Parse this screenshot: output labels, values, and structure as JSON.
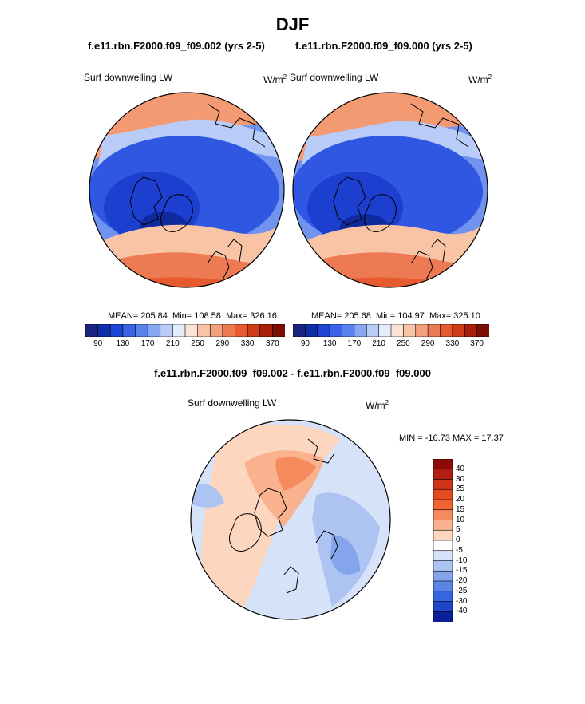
{
  "figure": {
    "season": "DJF",
    "case_a_title": "f.e11.rbn.F2000.f09_f09.002 (yrs 2-5)",
    "case_b_title": "f.e11.rbn.F2000.f09_f09.000 (yrs 2-5)",
    "diff_title": "f.e11.rbn.F2000.f09_f09.002 - f.e11.rbn.F2000.f09_f09.000"
  },
  "panels": {
    "a": {
      "variable": "Surf downwelling LW",
      "units": "W/m",
      "units_sup": "2",
      "mean_label": "MEAN= 205.84",
      "min_label": "Min= 108.58",
      "max_label": "Max= 326.16"
    },
    "b": {
      "variable": "Surf downwelling LW",
      "units": "W/m",
      "units_sup": "2",
      "mean_label": "MEAN= 205.68",
      "min_label": "Min= 104.97",
      "max_label": "Max= 325.10"
    },
    "diff": {
      "variable": "Surf downwelling LW",
      "units": "W/m",
      "units_sup": "2",
      "minmax_label": "MIN = -16.73 MAX =  17.37"
    }
  },
  "colorbars": {
    "abs_ticks": [
      "90",
      "130",
      "170",
      "210",
      "250",
      "290",
      "330",
      "370"
    ],
    "abs_colors": [
      "#1a237e",
      "#0d2fa8",
      "#1e46d6",
      "#3b63e8",
      "#5a82ee",
      "#8aa8f2",
      "#b9ccf7",
      "#e3ecfb",
      "#fde3d4",
      "#f9c3a6",
      "#f3a07c",
      "#ed7a52",
      "#e55a2e",
      "#cf3d17",
      "#a91f0a",
      "#7a0d04"
    ],
    "diff_ticks": [
      "40",
      "30",
      "25",
      "20",
      "15",
      "10",
      "5",
      "0",
      "-5",
      "-10",
      "-15",
      "-20",
      "-25",
      "-30",
      "-40"
    ],
    "diff_colors": [
      "#8b0a0a",
      "#b31e12",
      "#d0321a",
      "#e54a20",
      "#f06432",
      "#f58a5c",
      "#f9b18e",
      "#fcd6bf",
      "#ffffff",
      "#d6e2f8",
      "#adc4f2",
      "#84a5ec",
      "#5a85e6",
      "#3566de",
      "#1f46c8",
      "#0b1f99"
    ]
  },
  "chart_data": [
    {
      "type": "heatmap",
      "title": "f.e11.rbn.F2000.f09_f09.002 (yrs 2-5)",
      "variable": "Surf downwelling LW",
      "units": "W/m2",
      "projection": "north polar stereographic",
      "mean": 205.84,
      "min": 108.58,
      "max": 326.16,
      "levels": [
        90,
        130,
        170,
        210,
        250,
        290,
        330,
        370
      ]
    },
    {
      "type": "heatmap",
      "title": "f.e11.rbn.F2000.f09_f09.000 (yrs 2-5)",
      "variable": "Surf downwelling LW",
      "units": "W/m2",
      "projection": "north polar stereographic",
      "mean": 205.68,
      "min": 104.97,
      "max": 325.1,
      "levels": [
        90,
        130,
        170,
        210,
        250,
        290,
        330,
        370
      ]
    },
    {
      "type": "heatmap",
      "title": "f.e11.rbn.F2000.f09_f09.002 - f.e11.rbn.F2000.f09_f09.000",
      "variable": "Surf downwelling LW",
      "units": "W/m2",
      "projection": "north polar stereographic",
      "min": -16.73,
      "max": 17.37,
      "levels": [
        -40,
        -30,
        -25,
        -20,
        -15,
        -10,
        -5,
        0,
        5,
        10,
        15,
        20,
        25,
        30,
        40
      ]
    }
  ]
}
